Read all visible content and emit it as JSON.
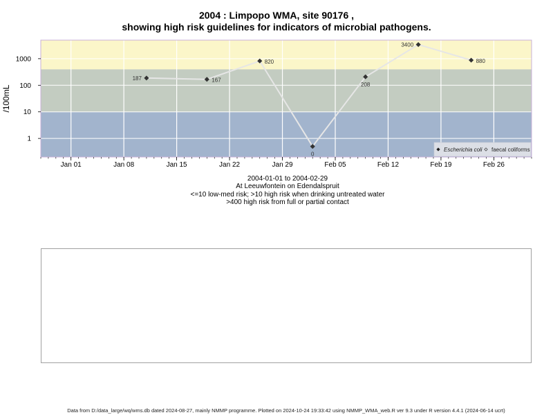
{
  "title_line1": "2004 : Limpopo WMA, site 90176 ,",
  "title_line2": "showing high risk guidelines for indicators of microbial pathogens.",
  "caption": {
    "date_range": "2004-01-01 to 2004-02-29",
    "location": "At Leeuwfontein on Edendalspruit",
    "risk_line1": "<=10 low-med risk; >10 high risk when drinking untreated water",
    "risk_line2": ">400 high risk from full or partial contact"
  },
  "footer": "Data from D:/data_large/wq/wms.db dated 2024-08-27, mainly NMMP programme. Plotted on 2024-10-24 19:33:42 using NMMP_WMA_web.R ver 9.3 under R version 4.4.1 (2024-06-14 ucrt)",
  "colors": {
    "band_low": "#a2b4cd",
    "band_mid": "#c3ccc1",
    "band_high": "#fbf6c9",
    "line": "#e6e6e6",
    "marker": "#333333",
    "grid": "#ffffff"
  },
  "chart_data": {
    "type": "line",
    "ylabel": "/100mL",
    "xlabel": "",
    "y_scale": "log",
    "x_range": [
      "2003-12-28",
      "2004-03-02"
    ],
    "y_range": [
      0.2,
      5000
    ],
    "y_ticks": [
      1,
      10,
      100,
      1000
    ],
    "y_tick_labels": [
      "1",
      "10",
      "100",
      "1000"
    ],
    "x_ticks": [
      "2004-01-01",
      "2004-01-08",
      "2004-01-15",
      "2004-01-22",
      "2004-01-29",
      "2004-02-05",
      "2004-02-12",
      "2004-02-19",
      "2004-02-26"
    ],
    "x_tick_labels": [
      "Jan 01",
      "Jan 08",
      "Jan 15",
      "Jan 22",
      "Jan 29",
      "Feb 05",
      "Feb 12",
      "Feb 19",
      "Feb 26"
    ],
    "risk_bands": [
      {
        "from": 0.2,
        "to": 10,
        "color": "#a2b4cd"
      },
      {
        "from": 10,
        "to": 400,
        "color": "#c3ccc1"
      },
      {
        "from": 400,
        "to": 5000,
        "color": "#fbf6c9"
      }
    ],
    "legend": [
      {
        "name": "Escherichia coli",
        "marker": "filled-diamond",
        "italic": true
      },
      {
        "name": "faecal coliforms",
        "marker": "open-diamond",
        "italic": false
      }
    ],
    "legend_position": "bottom-right",
    "series": [
      {
        "name": "Escherichia coli",
        "points": [
          {
            "x": "2004-01-11",
            "y": 187,
            "label": "187",
            "label_side": "left"
          },
          {
            "x": "2004-01-19",
            "y": 167,
            "label": "167",
            "label_side": "right"
          },
          {
            "x": "2004-01-26",
            "y": 820,
            "label": "820",
            "label_side": "right"
          },
          {
            "x": "2004-02-02",
            "y": 0.5,
            "label": "0",
            "label_side": "below"
          },
          {
            "x": "2004-02-09",
            "y": 208,
            "label": "208",
            "label_side": "below"
          },
          {
            "x": "2004-02-16",
            "y": 3400,
            "label": "3400",
            "label_side": "left"
          },
          {
            "x": "2004-02-23",
            "y": 880,
            "label": "880",
            "label_side": "right"
          }
        ]
      }
    ]
  }
}
